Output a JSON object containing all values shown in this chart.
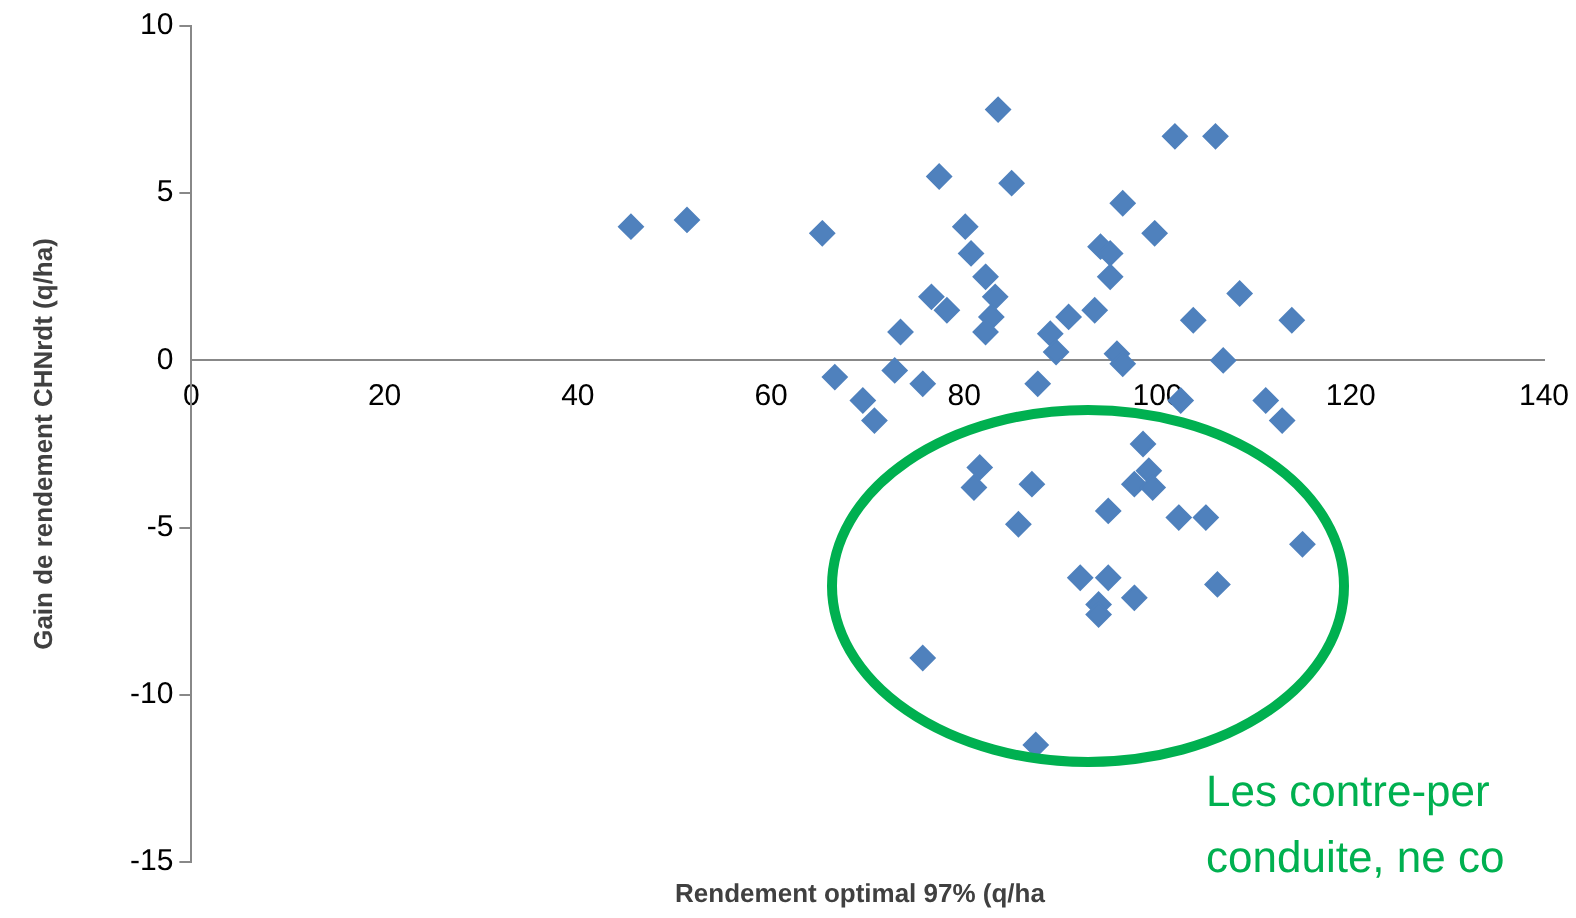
{
  "chart_data": {
    "type": "scatter",
    "xlabel": "Rendement optimal 97% (q/ha",
    "ylabel": "Gain de rendement CHNrdt (q/ha)",
    "xlim": [
      0,
      140
    ],
    "xticks": [
      0,
      20,
      40,
      60,
      80,
      100,
      120,
      140
    ],
    "ylim": [
      -15,
      10
    ],
    "yticks": [
      -15,
      -10,
      -5,
      0,
      5,
      10
    ],
    "grid": false,
    "legend": false,
    "marker": "diamond",
    "annotations": [
      "Les contre-per",
      "conduite, ne co"
    ],
    "series": [
      {
        "color": "#4f81bd",
        "x": [
          45.5,
          51.3,
          65.3,
          66.6,
          69.5,
          70.7,
          72.8,
          73.4,
          75.7,
          76.6,
          77.4,
          78.2,
          80.1,
          80.7,
          81,
          81.6,
          82.2,
          82.8,
          83.2,
          83.5,
          84.9,
          87,
          87.6,
          87.4,
          85.6,
          75.7,
          88.9,
          89.5,
          90.8,
          92,
          93.5,
          93.9,
          94.1,
          95.1,
          95.1,
          94.9,
          94.9,
          96.4,
          95.8,
          96.4,
          97.6,
          97.6,
          98.5,
          99.1,
          99.5,
          99.7,
          101.8,
          106,
          103.7,
          102.4,
          102.2,
          105,
          106.2,
          106.8,
          108.5,
          111.2,
          112.9,
          113.9,
          115,
          82.2,
          93.9
        ],
        "values": [
          4.0,
          4.2,
          3.8,
          -0.5,
          -1.2,
          -1.8,
          -0.3,
          0.85,
          -0.7,
          1.9,
          5.5,
          1.5,
          4.0,
          3.2,
          -3.8,
          -3.2,
          2.5,
          1.3,
          1.9,
          7.5,
          5.3,
          -3.7,
          -0.7,
          -11.5,
          -4.9,
          -8.9,
          0.8,
          0.25,
          1.3,
          -6.5,
          1.5,
          -7.3,
          3.4,
          3.2,
          2.5,
          -4.5,
          -6.5,
          4.7,
          0.2,
          -0.1,
          -3.7,
          -7.1,
          -2.5,
          -3.3,
          -3.8,
          3.8,
          6.7,
          6.7,
          1.2,
          -1.2,
          -4.7,
          -4.7,
          -6.7,
          0,
          2.0,
          -1.2,
          -1.8,
          1.2,
          -5.5,
          0.85,
          -7.6
        ]
      }
    ]
  }
}
